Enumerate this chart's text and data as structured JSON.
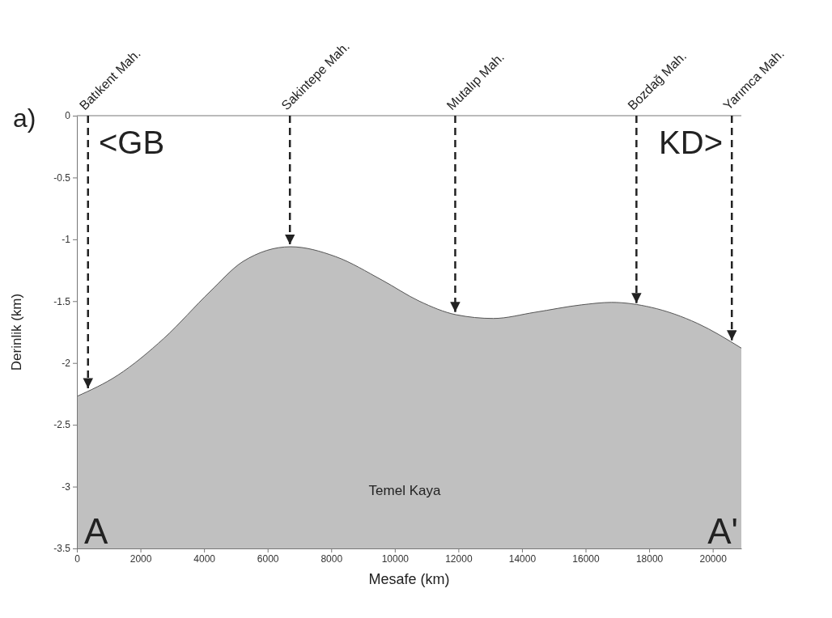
{
  "chart_data": {
    "type": "line",
    "xlabel": "Mesafe (km)",
    "ylabel": "Derinlik (km)",
    "x": [
      0,
      1280,
      2740,
      4200,
      5220,
      6720,
      8140,
      9600,
      10770,
      11930,
      13100,
      14410,
      15870,
      16820,
      18060,
      19520,
      20900
    ],
    "series": [
      {
        "color": "#555555",
        "values": [
          -2.27,
          -2.1,
          -1.8,
          -1.42,
          -1.18,
          -1.06,
          -1.14,
          -1.33,
          -1.5,
          -1.61,
          -1.64,
          -1.59,
          -1.53,
          -1.51,
          -1.55,
          -1.68,
          -1.88
        ],
        "lower": [
          -3.5,
          -3.5,
          -3.5,
          -3.5,
          -3.5,
          -3.5,
          -3.5,
          -3.5,
          -3.5,
          -3.5,
          -3.5,
          -3.5,
          -3.5,
          -3.5,
          -3.5,
          -3.5,
          -3.5
        ],
        "upper": [
          -2.27,
          -2.1,
          -1.8,
          -1.42,
          -1.18,
          -1.06,
          -1.14,
          -1.33,
          -1.5,
          -1.61,
          -1.64,
          -1.59,
          -1.53,
          -1.51,
          -1.55,
          -1.68,
          -1.88
        ]
      }
    ],
    "xlim": [
      0,
      20900
    ],
    "ylim": [
      -3.5,
      0
    ],
    "xticks": [
      0,
      2000,
      4000,
      6000,
      8000,
      10000,
      12000,
      14000,
      16000,
      18000,
      20000
    ],
    "yticks": [
      0,
      -0.5,
      -1,
      -1.5,
      -2,
      -2.5,
      -3,
      -3.5
    ],
    "ref_lines": [
      {
        "axis": "x",
        "value": 350,
        "label": "Batıkent Mah.",
        "color": "#222222",
        "line_style": "dashed"
      },
      {
        "axis": "x",
        "value": 6700,
        "label": "Sakintepe Mah.",
        "color": "#222222",
        "line_style": "dashed"
      },
      {
        "axis": "x",
        "value": 11900,
        "label": "Mutalıp Mah.",
        "color": "#222222",
        "line_style": "dashed"
      },
      {
        "axis": "x",
        "value": 17600,
        "label": "Bozdağ Mah.",
        "color": "#222222",
        "line_style": "dashed"
      },
      {
        "axis": "x",
        "value": 20600,
        "label": "Yarımca Mah.",
        "color": "#222222",
        "line_style": "dashed"
      }
    ],
    "annotations": [
      "a)",
      "<GB",
      "KD>",
      "Temel Kaya",
      "A",
      "A'"
    ],
    "grid": false
  }
}
